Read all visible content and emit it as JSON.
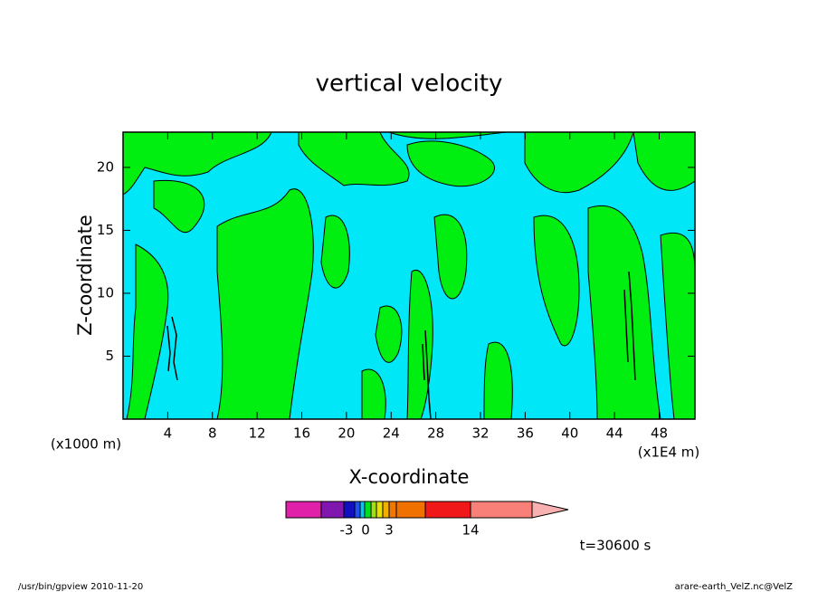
{
  "chart_data": {
    "type": "contour",
    "title": "vertical velocity",
    "x_label": "X-coordinate",
    "y_label": "Z-coordinate",
    "x_unit_left": "(x1000 m)",
    "x_unit_right": "(x1E4 m)",
    "xlim": [
      0,
      51.2
    ],
    "xticks": [
      4,
      8,
      12,
      16,
      20,
      24,
      28,
      32,
      36,
      40,
      44,
      48
    ],
    "ylim": [
      0,
      22.8
    ],
    "yticks": [
      5,
      10,
      15,
      20
    ],
    "colorbar": {
      "colors": [
        "#e020a8",
        "#8018b0",
        "#1010c0",
        "#2050f0",
        "#00c8f0",
        "#00e020",
        "#a0e010",
        "#e8e000",
        "#f0b000",
        "#f07800",
        "#f07000",
        "#f01818",
        "#f88078"
      ],
      "ticks": [
        -3,
        0,
        3,
        14
      ]
    },
    "time_label": "t=30600 s",
    "footer_left": "/usr/bin/gpview  2010-11-20",
    "footer_right": "arare-earth_VelZ.nc@VelZ"
  }
}
